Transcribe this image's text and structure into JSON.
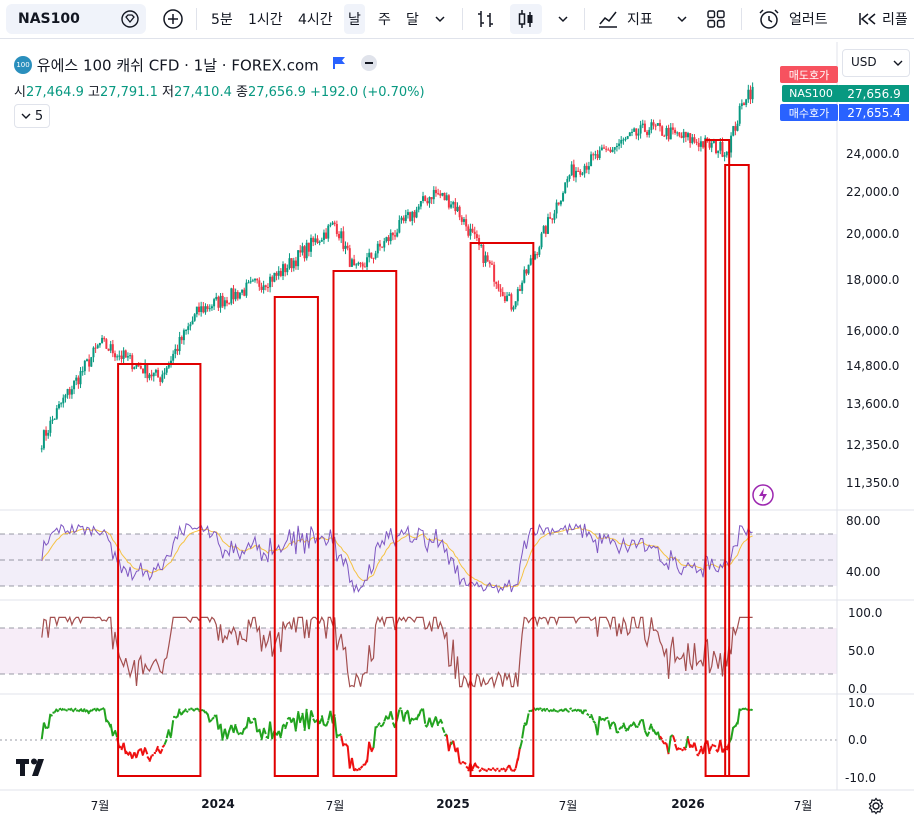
{
  "toolbar": {
    "symbol": "NAS100",
    "intervals": [
      "5분",
      "1시간",
      "4시간",
      "날",
      "주",
      "달"
    ],
    "indicators_label": "지표",
    "alert_label": "얼러트",
    "replay_label": "리플"
  },
  "legend": {
    "title": "유에스 100 캐쉬 CFD · 1날 · FOREX.com",
    "open_label": "시",
    "open": "27,464.9",
    "high_label": "고",
    "high": "27,791.1",
    "low_label": "저",
    "low": "27,410.4",
    "close_label": "종",
    "close": "27,656.9",
    "change": "+192.0 (+0.70%)",
    "collapsed_count": "5"
  },
  "price_scale": {
    "currency": "USD",
    "ticks": [
      "24,000.0",
      "22,000.0",
      "20,000.0",
      "18,000.0",
      "16,000.0",
      "14,800.0",
      "13,600.0",
      "12,350.0",
      "11,350.0"
    ],
    "sell_label": "매도호가",
    "symbol_tag": "NAS100",
    "symbol_price": "27,656.9",
    "buy_label": "매수호가",
    "buy_price": "27,655.4"
  },
  "rsi_scale": [
    "80.00",
    "40.00"
  ],
  "stoch_scale": [
    "100.0",
    "50.0",
    "0.0"
  ],
  "osc_scale": [
    "10.0",
    "0.0",
    "-10.0"
  ],
  "time_axis": [
    "7월",
    "2024",
    "7월",
    "2025",
    "7월",
    "2026",
    "7월"
  ],
  "colors": {
    "up": "#089981",
    "down": "#f23645",
    "highlight_box": "#e00000",
    "rsi_line": "#7e57c2",
    "rsi_signal": "#f5c242",
    "stoch_line": "#a34f4f",
    "osc_up": "#22a31f",
    "osc_down": "#ee1111"
  },
  "icons": {
    "symbol_search": "diamond-arrow-icon",
    "add_compare": "plus-circle-icon",
    "bars": "bar-chart-icon",
    "candles": "candlestick-icon",
    "indicators": "trend-line-icon",
    "layout": "grid-icon",
    "alert": "alarm-clock-plus-icon",
    "replay": "rewind-icon",
    "settings": "gear-icon",
    "flash": "lightning-icon",
    "logo": "tradingview-logo"
  },
  "chart_data": {
    "type": "candlestick",
    "price_key_points": [
      [
        "2023-04",
        12500
      ],
      [
        "2023-05",
        13600
      ],
      [
        "2023-07",
        15600
      ],
      [
        "2023-10",
        14400
      ],
      [
        "2023-12",
        16800
      ],
      [
        "2024-04",
        18200
      ],
      [
        "2024-07",
        20500
      ],
      [
        "2024-08",
        18300
      ],
      [
        "2024-12",
        22000
      ],
      [
        "2025-01",
        21500
      ],
      [
        "2025-04",
        17000
      ],
      [
        "2025-07",
        23000
      ],
      [
        "2025-11",
        25500
      ],
      [
        "2026-03",
        24200
      ],
      [
        "2026-04",
        27656.9
      ]
    ],
    "highlight_boxes": [
      {
        "from": "2023-08",
        "to": "2023-11"
      },
      {
        "from": "2024-04",
        "to": "2024-05"
      },
      {
        "from": "2024-07",
        "to": "2024-09"
      },
      {
        "from": "2025-02",
        "to": "2025-04"
      },
      {
        "from": "2026-02",
        "to": "2026-02"
      },
      {
        "from": "2026-03",
        "to": "2026-03"
      }
    ]
  }
}
